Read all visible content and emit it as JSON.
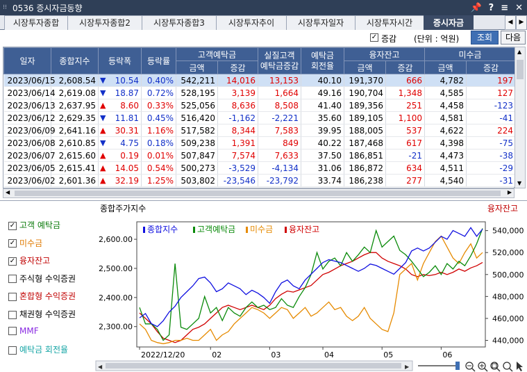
{
  "window": {
    "title": "0536 증시자금동향",
    "controls": [
      "📌",
      "?",
      "≡",
      "✕"
    ]
  },
  "tabs": [
    {
      "label": "시장투자종합",
      "active": false
    },
    {
      "label": "시장투자종합2",
      "active": false
    },
    {
      "label": "시장투자종합3",
      "active": false
    },
    {
      "label": "시장투자추이",
      "active": false
    },
    {
      "label": "시장투자일자",
      "active": false
    },
    {
      "label": "시장투자시간",
      "active": false
    },
    {
      "label": "증시자금",
      "active": true
    }
  ],
  "toolbar": {
    "change_checkbox": "증감",
    "change_checked": true,
    "unit": "(단위 : 억원)",
    "query_button": "조회",
    "next_button": "다음"
  },
  "table": {
    "headers": {
      "date": "일자",
      "index": "종합지수",
      "change": "등락폭",
      "rate": "등락률",
      "deposit": "고객예탁금",
      "real_deposit": "실질고객\n예탁금증감",
      "turnover": "예탁금\n회전율",
      "margin": "융자잔고",
      "receivable": "미수금",
      "amount": "금액",
      "delta": "증감"
    },
    "rows": [
      {
        "date": "2023/06/15",
        "index": "2,608.54",
        "dir": "down",
        "change": "10.54",
        "rate": "0.40%",
        "dep": "542,211",
        "dep_d": "14,016",
        "real": "13,153",
        "turn": "40.10",
        "mar": "191,370",
        "mar_d": "666",
        "rec": "4,782",
        "rec_d": "197"
      },
      {
        "date": "2023/06/14",
        "index": "2,619.08",
        "dir": "down",
        "change": "18.87",
        "rate": "0.72%",
        "dep": "528,195",
        "dep_d": "3,139",
        "real": "1,664",
        "turn": "49.16",
        "mar": "190,704",
        "mar_d": "1,348",
        "rec": "4,585",
        "rec_d": "127"
      },
      {
        "date": "2023/06/13",
        "index": "2,637.95",
        "dir": "up",
        "change": "8.60",
        "rate": "0.33%",
        "dep": "525,056",
        "dep_d": "8,636",
        "real": "8,508",
        "turn": "41.40",
        "mar": "189,356",
        "mar_d": "251",
        "rec": "4,458",
        "rec_d": "-123"
      },
      {
        "date": "2023/06/12",
        "index": "2,629.35",
        "dir": "down",
        "change": "11.81",
        "rate": "0.45%",
        "dep": "516,420",
        "dep_d": "-1,162",
        "real": "-2,221",
        "turn": "35.60",
        "mar": "189,105",
        "mar_d": "1,100",
        "rec": "4,581",
        "rec_d": "-41"
      },
      {
        "date": "2023/06/09",
        "index": "2,641.16",
        "dir": "up",
        "change": "30.31",
        "rate": "1.16%",
        "dep": "517,582",
        "dep_d": "8,344",
        "real": "7,583",
        "turn": "39.95",
        "mar": "188,005",
        "mar_d": "537",
        "rec": "4,622",
        "rec_d": "224"
      },
      {
        "date": "2023/06/08",
        "index": "2,610.85",
        "dir": "down",
        "change": "4.75",
        "rate": "0.18%",
        "dep": "509,238",
        "dep_d": "1,391",
        "real": "849",
        "turn": "40.22",
        "mar": "187,468",
        "mar_d": "617",
        "rec": "4,398",
        "rec_d": "-75"
      },
      {
        "date": "2023/06/07",
        "index": "2,615.60",
        "dir": "up",
        "change": "0.19",
        "rate": "0.01%",
        "dep": "507,847",
        "dep_d": "7,574",
        "real": "7,633",
        "turn": "37.50",
        "mar": "186,851",
        "mar_d": "-21",
        "rec": "4,473",
        "rec_d": "-38"
      },
      {
        "date": "2023/06/05",
        "index": "2,615.41",
        "dir": "up",
        "change": "14.05",
        "rate": "0.54%",
        "dep": "500,273",
        "dep_d": "-3,529",
        "real": "-4,134",
        "turn": "31.06",
        "mar": "186,872",
        "mar_d": "634",
        "rec": "4,511",
        "rec_d": "-29"
      },
      {
        "date": "2023/06/02",
        "index": "2,601.36",
        "dir": "up",
        "change": "32.19",
        "rate": "1.25%",
        "dep": "503,802",
        "dep_d": "-23,546",
        "real": "-23,792",
        "turn": "33.74",
        "mar": "186,238",
        "mar_d": "277",
        "rec": "4,540",
        "rec_d": "-31"
      }
    ]
  },
  "legend_panel": [
    {
      "label": "고객 예탁금",
      "checked": true,
      "color": "#0a7a0a"
    },
    {
      "label": "미수금",
      "checked": true,
      "color": "#e07a00"
    },
    {
      "label": "융자잔고",
      "checked": true,
      "color": "#c00000"
    },
    {
      "label": "주식형 수익증권",
      "checked": false,
      "color": "#000000"
    },
    {
      "label": "혼합형 수익증권",
      "checked": false,
      "color": "#c00000"
    },
    {
      "label": "채권형 수익증권",
      "checked": false,
      "color": "#000000"
    },
    {
      "label": "MMF",
      "checked": false,
      "color": "#8a2be2"
    },
    {
      "label": "예탁금 회전율",
      "checked": false,
      "color": "#18a6a6"
    }
  ],
  "chart_data": {
    "type": "line",
    "title": "종합주가지수",
    "right_title": "융자잔고",
    "legend_entries": [
      "종합지수",
      "고객예탁금",
      "미수금",
      "융자잔고"
    ],
    "x_ticks": [
      "2022/12/20",
      "02",
      "03",
      "04",
      "05",
      "06"
    ],
    "y_left_ticks": [
      "2,600.00",
      "2,500.00",
      "2,400.00",
      "2,300.00"
    ],
    "y_right_ticks": [
      "540,000",
      "520,000",
      "500,000",
      "480,000",
      "460,000",
      "440,000"
    ],
    "ylim_left": [
      2230,
      2660
    ],
    "ylim_right": [
      434000,
      548000
    ],
    "grid": false,
    "legend_position": "top-left",
    "colors": {
      "index": "#1010e0",
      "deposit": "#0a8a0a",
      "receivable": "#e68a00",
      "margin": "#d00000"
    },
    "series": [
      {
        "name": "종합지수",
        "axis": "left",
        "values": [
          2330,
          2345,
          2310,
          2300,
          2320,
          2350,
          2370,
          2400,
          2420,
          2440,
          2465,
          2470,
          2450,
          2420,
          2430,
          2450,
          2440,
          2430,
          2410,
          2425,
          2415,
          2400,
          2380,
          2420,
          2450,
          2460,
          2440,
          2430,
          2460,
          2480,
          2500,
          2520,
          2530,
          2525,
          2520,
          2510,
          2500,
          2490,
          2500,
          2515,
          2510,
          2500,
          2490,
          2480,
          2500,
          2520,
          2560,
          2570,
          2560,
          2570,
          2590,
          2610,
          2600,
          2630,
          2620,
          2610,
          2640,
          2610,
          2635
        ]
      },
      {
        "name": "고객예탁금",
        "axis": "right",
        "values": [
          470000,
          455000,
          455000,
          450000,
          440000,
          445000,
          510000,
          452000,
          450000,
          455000,
          460000,
          480000,
          465000,
          470000,
          458000,
          470000,
          465000,
          462000,
          470000,
          475000,
          470000,
          472000,
          468000,
          470000,
          478000,
          472000,
          470000,
          480000,
          488000,
          500000,
          520000,
          505000,
          512000,
          515000,
          508000,
          520000,
          512000,
          518000,
          525000,
          520000,
          540000,
          525000,
          530000,
          535000,
          522000,
          518000,
          512000,
          505000,
          498000,
          502000,
          508000,
          500000,
          510000,
          505000,
          512000,
          508000,
          517000,
          528000,
          542000
        ]
      },
      {
        "name": "미수금",
        "axis": "right",
        "values": [
          455000,
          450000,
          440000,
          438000,
          437000,
          438000,
          440000,
          440000,
          442000,
          440000,
          440000,
          445000,
          450000,
          440000,
          445000,
          448000,
          455000,
          460000,
          465000,
          470000,
          468000,
          465000,
          460000,
          465000,
          470000,
          468000,
          460000,
          465000,
          470000,
          462000,
          465000,
          470000,
          475000,
          468000,
          470000,
          462000,
          458000,
          462000,
          470000,
          460000,
          455000,
          450000,
          448000,
          465000,
          500000,
          505000,
          510000,
          495000,
          510000,
          520000,
          530000,
          535000,
          525000,
          515000,
          510000,
          520000,
          528000,
          515000,
          520000
        ]
      },
      {
        "name": "융자잔고",
        "axis": "right",
        "values": [
          465000,
          460000,
          455000,
          448000,
          442000,
          440000,
          438000,
          440000,
          445000,
          450000,
          452000,
          455000,
          460000,
          465000,
          470000,
          472000,
          470000,
          468000,
          470000,
          472000,
          470000,
          468000,
          472000,
          478000,
          482000,
          485000,
          484000,
          486000,
          488000,
          490000,
          495000,
          500000,
          502000,
          505000,
          508000,
          510000,
          512000,
          515000,
          518000,
          520000,
          520000,
          515000,
          512000,
          510000,
          508000,
          505000,
          500000,
          498000,
          500000,
          499000,
          500000,
          502000,
          500000,
          502000,
          505000,
          503000,
          506000,
          508000,
          511000
        ]
      }
    ]
  }
}
